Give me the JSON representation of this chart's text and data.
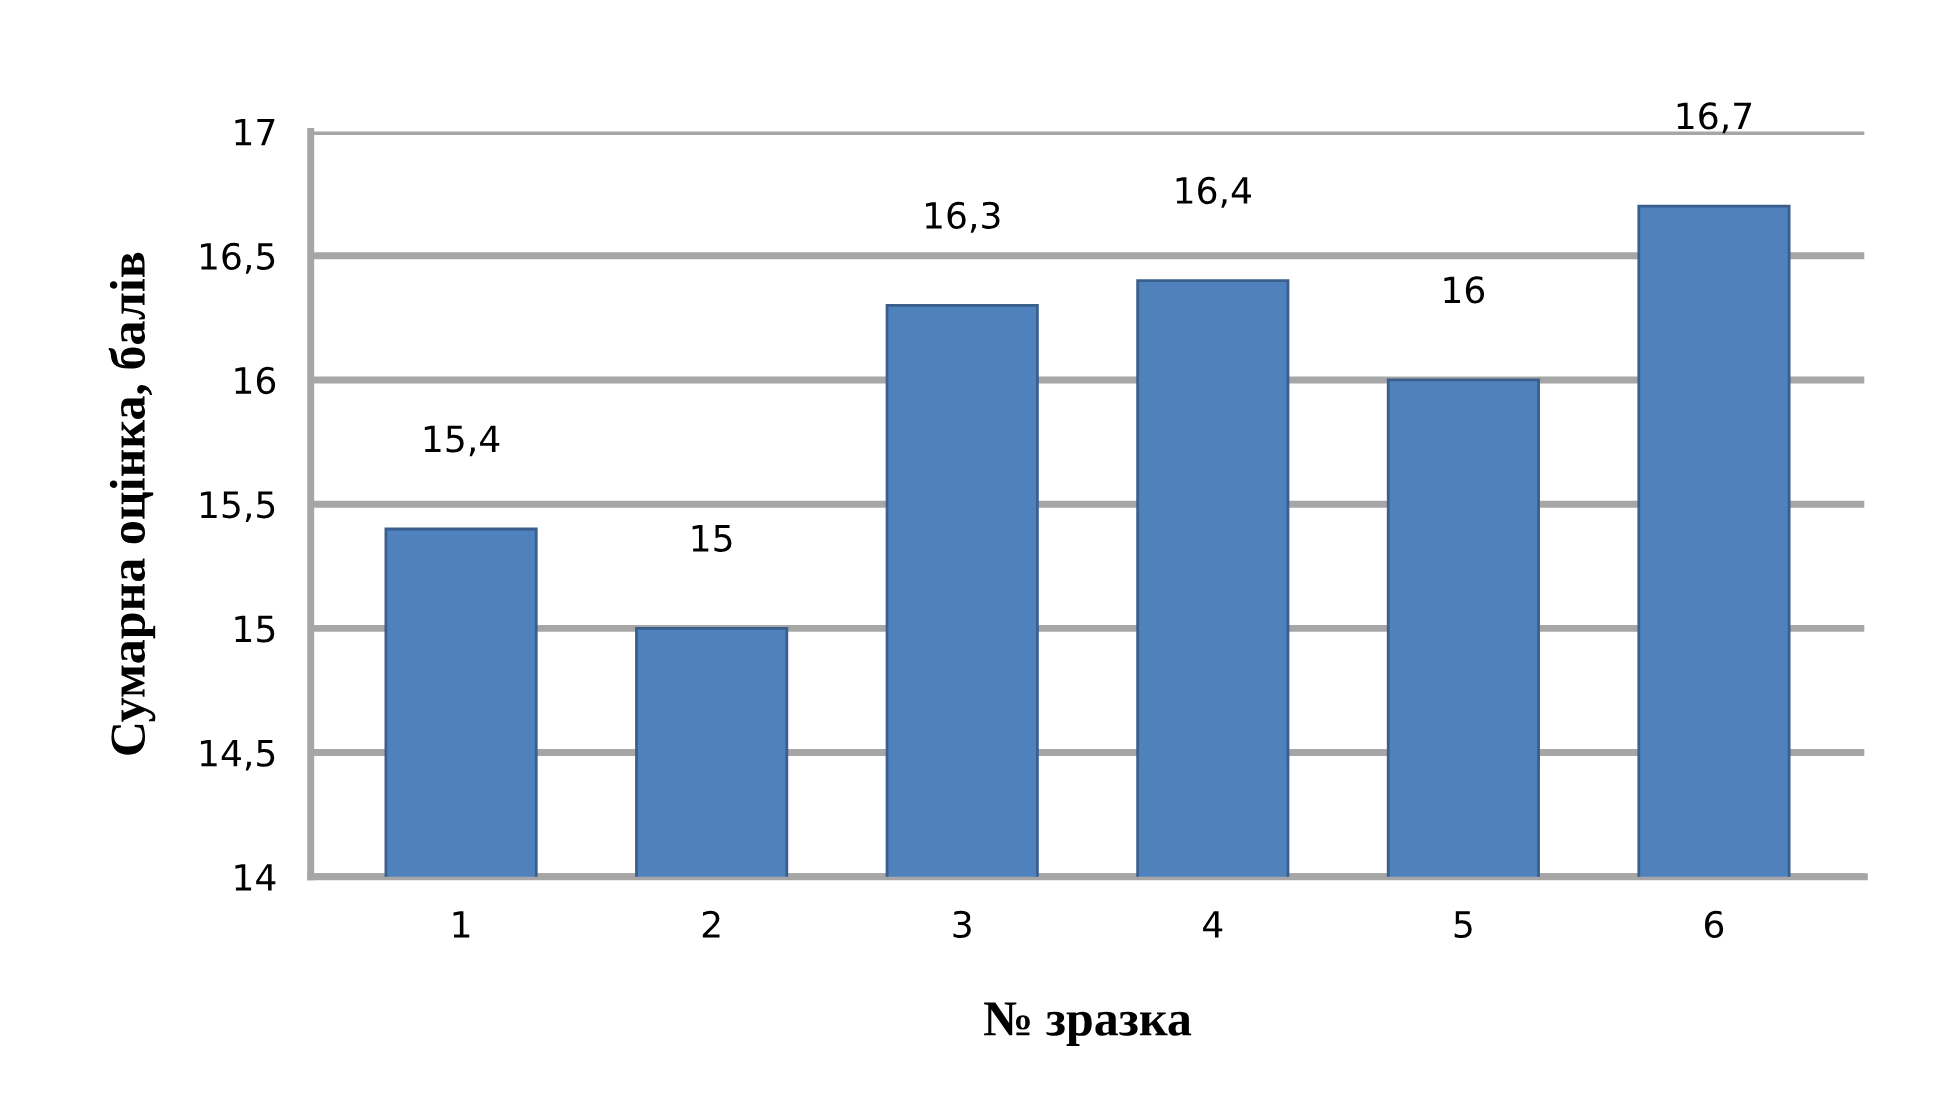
{
  "chart_data": {
    "type": "bar",
    "xlabel": "№ зразка",
    "ylabel": "Сумарна оцінка, балів",
    "categories": [
      "1",
      "2",
      "3",
      "4",
      "5",
      "6"
    ],
    "values": [
      15.4,
      15,
      16.3,
      16.4,
      16,
      16.7
    ],
    "value_labels": [
      "15,4",
      "15",
      "16,3",
      "16,4",
      "16",
      "16,7"
    ],
    "color": "#4f81bd",
    "ylim": [
      14,
      17
    ],
    "yticks": [
      14,
      {
        "value": 14.5,
        "label": "14,5"
      },
      15,
      {
        "value": 15.5,
        "label": "15,5"
      },
      16,
      {
        "value": 16.5,
        "label": "16,5"
      },
      17
    ],
    "grid": "y"
  }
}
